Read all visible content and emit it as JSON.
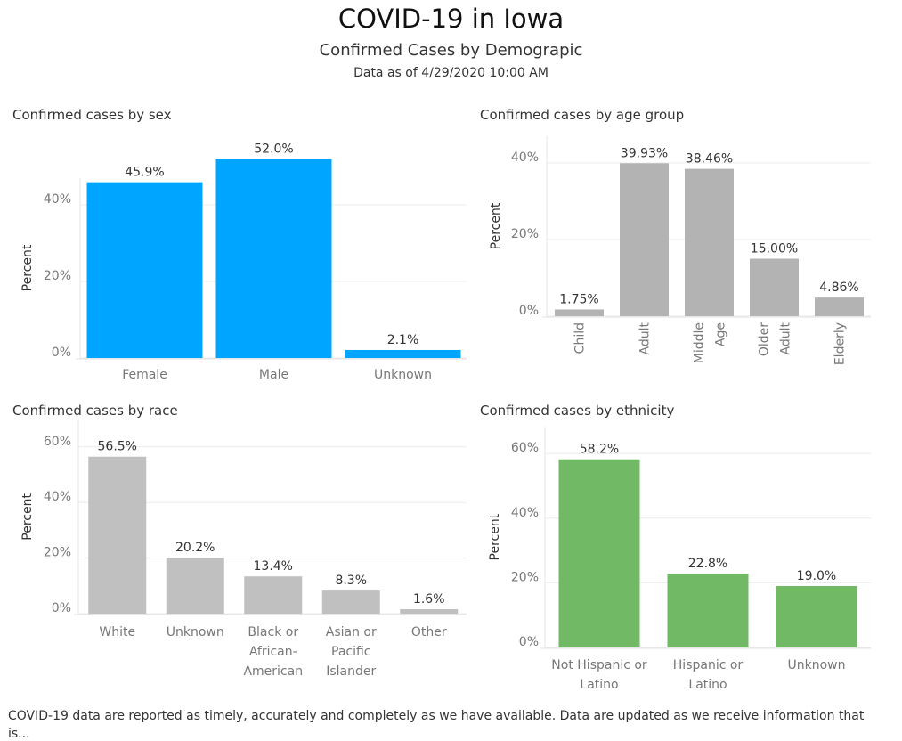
{
  "header": {
    "title": "COVID-19 in Iowa",
    "subtitle": "Confirmed Cases by Demograpic",
    "as_of": "Data as of 4/29/2020 10:00 AM"
  },
  "footer": {
    "line1": "COVID-19 data are reported as timely, accurately and completely as we have available.  Data are updated as we receive information that",
    "line2": "is..."
  },
  "chart_data": [
    {
      "id": "sex",
      "type": "bar",
      "title": "Confirmed cases by sex",
      "ylabel": "Percent",
      "categories": [
        [
          "Female"
        ],
        [
          "Male"
        ],
        [
          "Unknown"
        ]
      ],
      "values": [
        45.9,
        52.0,
        2.1
      ],
      "labels": [
        "45.9%",
        "52.0%",
        "2.1%"
      ],
      "yticks": [
        0,
        20,
        40
      ],
      "yticklabels": [
        "0%",
        "20%",
        "40%"
      ],
      "color": "#00a5ff",
      "grid": true
    },
    {
      "id": "age",
      "type": "bar",
      "title": "Confirmed cases by age group",
      "ylabel": "Percent",
      "categories": [
        [
          "Child"
        ],
        [
          "Adult"
        ],
        [
          "Middle",
          "Age"
        ],
        [
          "Older",
          "Adult"
        ],
        [
          "Elderly"
        ]
      ],
      "values": [
        1.75,
        39.93,
        38.46,
        15.0,
        4.86
      ],
      "labels": [
        "1.75%",
        "39.93%",
        "38.46%",
        "15.00%",
        "4.86%"
      ],
      "yticks": [
        0,
        20,
        40
      ],
      "yticklabels": [
        "0%",
        "20%",
        "40%"
      ],
      "color": "#b3b3b3",
      "rotated_labels": true,
      "grid": true
    },
    {
      "id": "race",
      "type": "bar",
      "title": "Confirmed cases by race",
      "ylabel": "Percent",
      "categories": [
        [
          "White"
        ],
        [
          "Unknown"
        ],
        [
          "Black or",
          "African-",
          "American"
        ],
        [
          "Asian or",
          "Pacific",
          "Islander"
        ],
        [
          "Other"
        ]
      ],
      "values": [
        56.5,
        20.2,
        13.4,
        8.3,
        1.6
      ],
      "labels": [
        "56.5%",
        "20.2%",
        "13.4%",
        "8.3%",
        "1.6%"
      ],
      "yticks": [
        0,
        20,
        40,
        60
      ],
      "yticklabels": [
        "0%",
        "20%",
        "40%",
        "60%"
      ],
      "color": "#c0c0c0",
      "grid": true
    },
    {
      "id": "ethnicity",
      "type": "bar",
      "title": "Confirmed cases by ethnicity",
      "ylabel": "Percent",
      "categories": [
        [
          "Not Hispanic or",
          "Latino"
        ],
        [
          "Hispanic or",
          "Latino"
        ],
        [
          "Unknown"
        ]
      ],
      "values": [
        58.2,
        22.8,
        19.0
      ],
      "labels": [
        "58.2%",
        "22.8%",
        "19.0%"
      ],
      "yticks": [
        0,
        20,
        40,
        60
      ],
      "yticklabels": [
        "0%",
        "20%",
        "40%",
        "60%"
      ],
      "color": "#72b965",
      "grid": true
    }
  ]
}
